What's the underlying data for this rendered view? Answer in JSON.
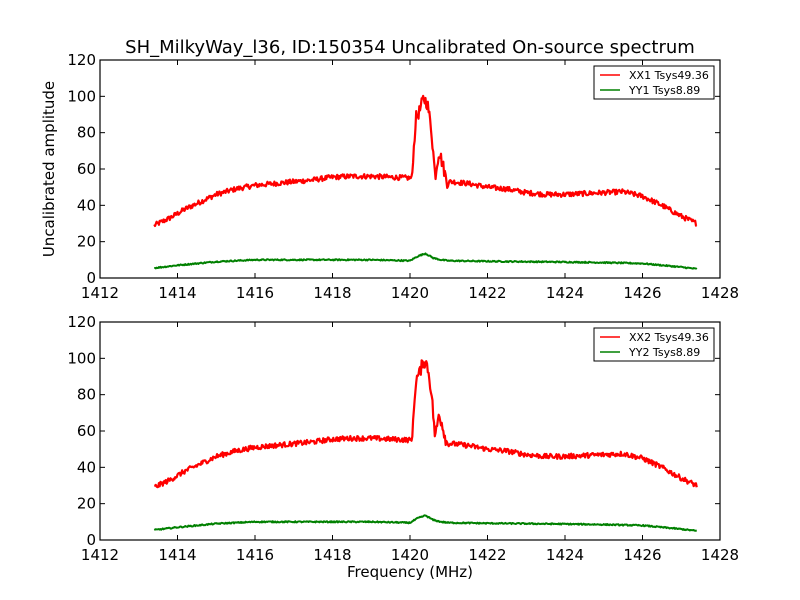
{
  "chart_data": [
    {
      "type": "line",
      "title": "SH_MilkyWay_l36, ID:150354 Uncalibrated On-source spectrum",
      "xlabel": "",
      "ylabel": "Uncalibrated amplitude",
      "xlim": [
        1412,
        1428
      ],
      "ylim": [
        0,
        120
      ],
      "xticks": [
        1412,
        1414,
        1416,
        1418,
        1420,
        1422,
        1424,
        1426,
        1428
      ],
      "yticks": [
        0,
        20,
        40,
        60,
        80,
        100,
        120
      ],
      "grid": false,
      "legend_position": "top-right",
      "series": [
        {
          "name": "XX1 Tsys49.36",
          "color": "#ff0000",
          "x": [
            1413.4,
            1413.8,
            1414.2,
            1414.6,
            1415.0,
            1415.5,
            1416.0,
            1416.5,
            1417.0,
            1417.5,
            1418.0,
            1418.5,
            1419.0,
            1419.5,
            1420.05,
            1420.15,
            1420.25,
            1420.35,
            1420.45,
            1420.55,
            1420.65,
            1420.75,
            1420.85,
            1420.95,
            1421.1,
            1421.5,
            1422.0,
            1422.5,
            1423.0,
            1423.5,
            1424.0,
            1424.5,
            1425.0,
            1425.5,
            1426.0,
            1426.5,
            1427.0,
            1427.4
          ],
          "y": [
            29,
            33,
            38,
            42,
            46,
            49,
            51,
            52,
            53,
            54,
            55.5,
            56,
            56,
            55.5,
            55,
            88,
            92,
            99,
            96,
            82,
            56,
            70,
            62,
            53,
            53,
            52,
            50,
            49,
            47,
            46,
            46,
            46.5,
            47,
            47.5,
            45,
            40,
            34,
            30
          ]
        },
        {
          "name": "YY1 Tsys8.89",
          "color": "#008000",
          "x": [
            1413.4,
            1414.0,
            1415.0,
            1416.0,
            1417.0,
            1418.0,
            1419.0,
            1420.0,
            1420.2,
            1420.4,
            1420.6,
            1420.8,
            1421.0,
            1422.0,
            1423.0,
            1424.0,
            1425.0,
            1426.0,
            1427.0,
            1427.4
          ],
          "y": [
            5.5,
            7,
            9,
            10,
            10,
            10,
            10,
            9.5,
            12,
            13.5,
            11,
            10,
            9.5,
            9.2,
            9,
            8.8,
            8.5,
            8,
            6,
            5
          ]
        }
      ]
    },
    {
      "type": "line",
      "title": "",
      "xlabel": "Frequency (MHz)",
      "ylabel": "",
      "xlim": [
        1412,
        1428
      ],
      "ylim": [
        0,
        120
      ],
      "xticks": [
        1412,
        1414,
        1416,
        1418,
        1420,
        1422,
        1424,
        1426,
        1428
      ],
      "yticks": [
        0,
        20,
        40,
        60,
        80,
        100,
        120
      ],
      "grid": false,
      "legend_position": "top-right",
      "series": [
        {
          "name": "XX2 Tsys49.36",
          "color": "#ff0000",
          "x": [
            1413.4,
            1413.8,
            1414.2,
            1414.6,
            1415.0,
            1415.5,
            1416.0,
            1416.5,
            1417.0,
            1417.5,
            1418.0,
            1418.5,
            1419.0,
            1419.5,
            1420.05,
            1420.15,
            1420.25,
            1420.35,
            1420.45,
            1420.55,
            1420.65,
            1420.75,
            1420.85,
            1420.95,
            1421.1,
            1421.5,
            1422.0,
            1422.5,
            1423.0,
            1423.5,
            1424.0,
            1424.5,
            1425.0,
            1425.5,
            1426.0,
            1426.5,
            1427.0,
            1427.4
          ],
          "y": [
            29,
            33,
            38,
            42,
            46,
            49,
            51,
            52,
            53,
            54,
            55.5,
            56,
            56,
            55.5,
            55,
            88,
            92,
            99,
            96,
            82,
            56,
            70,
            62,
            53,
            53,
            52,
            50,
            49,
            47,
            46,
            46,
            46.5,
            47,
            47.5,
            45,
            40,
            34,
            30
          ]
        },
        {
          "name": "YY2 Tsys8.89",
          "color": "#008000",
          "x": [
            1413.4,
            1414.0,
            1415.0,
            1416.0,
            1417.0,
            1418.0,
            1419.0,
            1420.0,
            1420.2,
            1420.4,
            1420.6,
            1420.8,
            1421.0,
            1422.0,
            1423.0,
            1424.0,
            1425.0,
            1426.0,
            1427.0,
            1427.4
          ],
          "y": [
            5.5,
            7,
            9,
            10,
            10,
            10,
            10,
            9.5,
            12,
            13.5,
            11,
            10,
            9.5,
            9.2,
            9,
            8.8,
            8.5,
            8,
            6,
            5
          ]
        }
      ]
    }
  ]
}
